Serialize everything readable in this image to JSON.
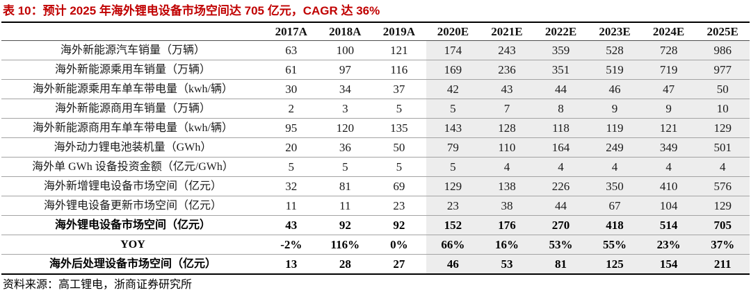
{
  "page": {
    "title": "表 10：预计 2025 年海外锂电设备市场空间达 705 亿元，CAGR 达 36%",
    "source_note": "资料来源：高工锂电，浙商证券研究所"
  },
  "colors": {
    "title_red": "#c00000",
    "forecast_column_bg": "#ededed",
    "row_divider": "#a3a3a3",
    "header_divider": "#4d4d4d",
    "table_border": "#000000"
  },
  "chart_data": {
    "type": "table",
    "columns": [
      "2017A",
      "2018A",
      "2019A",
      "2020E",
      "2021E",
      "2022E",
      "2023E",
      "2024E",
      "2025E"
    ],
    "shaded_from_column": 3,
    "rows": [
      {
        "label": "海外新能源汽车销量（万辆）",
        "bold": false,
        "values": [
          63,
          100,
          121,
          174,
          243,
          359,
          528,
          728,
          986
        ]
      },
      {
        "label": "海外新能源乘用车销量（万辆）",
        "bold": false,
        "values": [
          61,
          97,
          116,
          169,
          236,
          351,
          519,
          719,
          977
        ]
      },
      {
        "label": "海外新能源乘用车单车带电量（kwh/辆）",
        "bold": false,
        "values": [
          30,
          34,
          37,
          42,
          43,
          44,
          46,
          47,
          50
        ]
      },
      {
        "label": "海外新能源商用车销量（万辆）",
        "bold": false,
        "values": [
          2,
          3,
          5,
          5,
          7,
          8,
          9,
          9,
          10
        ]
      },
      {
        "label": "海外新能源商用车单车带电量（kwh/辆）",
        "bold": false,
        "values": [
          95,
          120,
          135,
          143,
          128,
          118,
          119,
          121,
          129
        ]
      },
      {
        "label": "海外动力锂电池装机量（GWh）",
        "bold": false,
        "values": [
          20,
          36,
          50,
          79,
          110,
          164,
          249,
          349,
          501
        ]
      },
      {
        "label": "海外单 GWh 设备投资金额（亿元/GWh）",
        "bold": false,
        "values": [
          5,
          5,
          5,
          5,
          4,
          4,
          4,
          4,
          4
        ]
      },
      {
        "label": "海外新增锂电设备市场空间（亿元）",
        "bold": false,
        "values": [
          32,
          81,
          69,
          129,
          138,
          226,
          350,
          410,
          576
        ]
      },
      {
        "label": "海外锂电设备更新市场空间（亿元）",
        "bold": false,
        "values": [
          11,
          11,
          23,
          23,
          38,
          44,
          67,
          104,
          129
        ]
      },
      {
        "label": "海外锂电设备市场空间（亿元）",
        "bold": true,
        "values": [
          43,
          92,
          92,
          152,
          176,
          270,
          418,
          514,
          705
        ]
      },
      {
        "label": "YOY",
        "bold": true,
        "values": [
          "-2%",
          "116%",
          "0%",
          "66%",
          "16%",
          "53%",
          "55%",
          "23%",
          "37%"
        ]
      },
      {
        "label": "海外后处理设备市场空间（亿元）",
        "bold": true,
        "values": [
          13,
          28,
          27,
          46,
          53,
          81,
          125,
          154,
          211
        ]
      }
    ]
  }
}
